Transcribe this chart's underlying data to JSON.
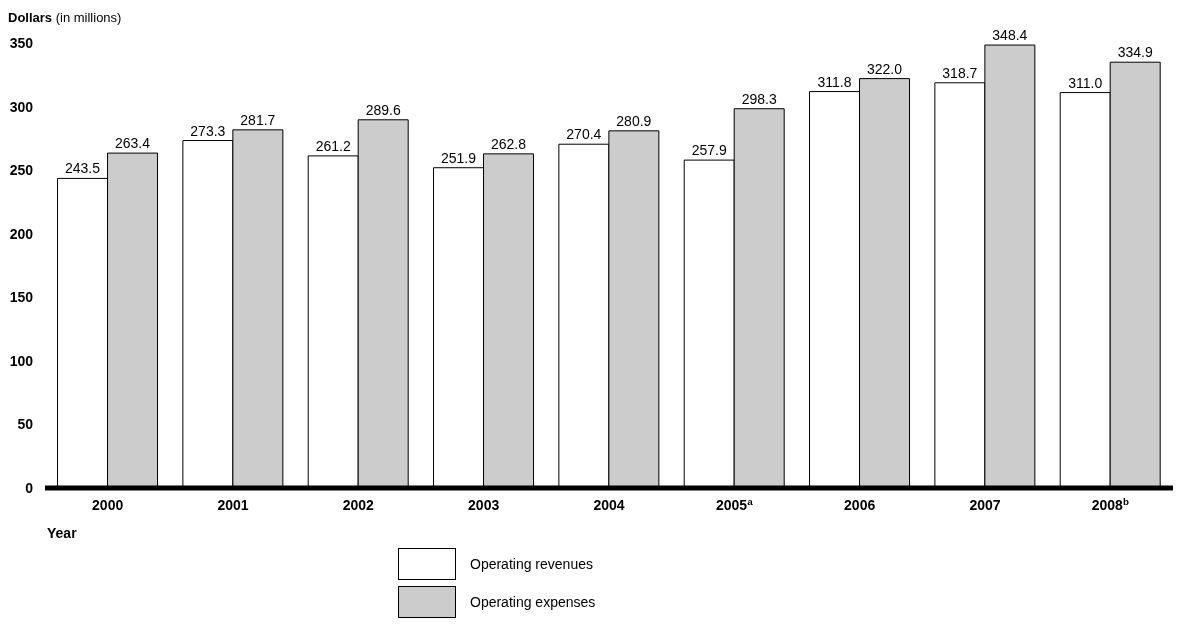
{
  "chart_data": {
    "type": "bar",
    "ylabel": "Dollars (in millions)",
    "xlabel": "Year",
    "categories": [
      "2000",
      "2001",
      "2002",
      "2003",
      "2004",
      "2005$^{a}$",
      "2006",
      "2007",
      "2008$^{b}$"
    ],
    "series": [
      {
        "name": "Operating revenues",
        "color": "#ffffff",
        "values": [
          243.5,
          273.3,
          261.2,
          251.9,
          270.4,
          257.9,
          311.8,
          318.7,
          311.0
        ],
        "value_labels": [
          "243.5",
          "273.3",
          "261.2",
          "251.9",
          "270.4",
          "257.9",
          "311.8",
          "318.7",
          "311.0"
        ]
      },
      {
        "name": "Operating expenses",
        "color": "#cccccc",
        "values": [
          263.4,
          281.7,
          289.6,
          262.8,
          280.9,
          298.3,
          322.0,
          348.4,
          334.9
        ],
        "value_labels": [
          "263.4",
          "281.7",
          "289.6",
          "262.8",
          "280.9",
          "298.3",
          "322.0",
          "348.4",
          "334.9"
        ]
      }
    ],
    "ylim": [
      0,
      350
    ],
    "yticks": [
      0,
      50,
      100,
      150,
      200,
      250,
      300,
      350
    ],
    "grid": false,
    "legend": "bottom"
  }
}
